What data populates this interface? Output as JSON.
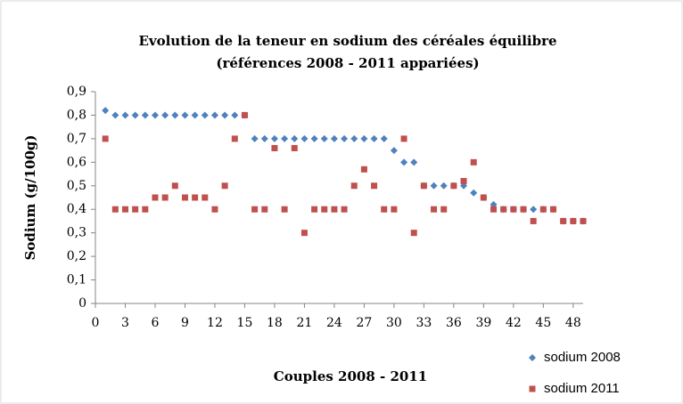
{
  "chart_data": {
    "type": "scatter",
    "title": "Evolution de la teneur en sodium des céréales équilibre",
    "subtitle": "(références 2008 - 2011 appariées)",
    "x_label": "Couples 2008 - 2011",
    "y_label": "Sodium (g/100g)",
    "x": [
      1,
      2,
      3,
      4,
      5,
      6,
      7,
      8,
      9,
      10,
      11,
      12,
      13,
      14,
      15,
      16,
      17,
      18,
      19,
      20,
      21,
      22,
      23,
      24,
      25,
      26,
      27,
      28,
      29,
      30,
      31,
      32,
      33,
      34,
      35,
      36,
      37,
      38,
      39,
      40,
      41,
      42,
      43,
      44,
      45,
      46,
      47,
      48,
      49
    ],
    "series": [
      {
        "name": "sodium 2008",
        "color": "#4f81bd",
        "marker": "diamond",
        "values": [
          0.82,
          0.8,
          0.8,
          0.8,
          0.8,
          0.8,
          0.8,
          0.8,
          0.8,
          0.8,
          0.8,
          0.8,
          0.8,
          0.8,
          0.8,
          0.7,
          0.7,
          0.7,
          0.7,
          0.7,
          0.7,
          0.7,
          0.7,
          0.7,
          0.7,
          0.7,
          0.7,
          0.7,
          0.7,
          0.65,
          0.6,
          0.6,
          0.5,
          0.5,
          0.5,
          0.5,
          0.5,
          0.47,
          0.45,
          0.42,
          0.4,
          0.4,
          0.4,
          0.4,
          0.4,
          0.4,
          0.35,
          0.35,
          0.35
        ]
      },
      {
        "name": "sodium 2011",
        "color": "#c0504d",
        "marker": "square",
        "values": [
          0.7,
          0.4,
          0.4,
          0.4,
          0.4,
          0.45,
          0.45,
          0.5,
          0.45,
          0.45,
          0.45,
          0.4,
          0.5,
          0.7,
          0.8,
          0.4,
          0.4,
          0.66,
          0.4,
          0.66,
          0.3,
          0.4,
          0.4,
          0.4,
          0.4,
          0.5,
          0.57,
          0.5,
          0.4,
          0.4,
          0.7,
          0.3,
          0.5,
          0.4,
          0.4,
          0.5,
          0.52,
          0.6,
          0.45,
          0.4,
          0.4,
          0.4,
          0.4,
          0.35,
          0.4,
          0.4,
          0.35,
          0.35,
          0.35
        ]
      }
    ],
    "xlim": [
      0,
      49
    ],
    "xticks": [
      0,
      3,
      6,
      9,
      12,
      15,
      18,
      21,
      24,
      27,
      30,
      33,
      36,
      39,
      42,
      45,
      48
    ],
    "ylim": [
      0,
      0.9
    ],
    "yticks": [
      0,
      {
        "value": 0.1,
        "label": "0,1"
      },
      {
        "value": 0.2,
        "label": "0,2"
      },
      {
        "value": 0.3,
        "label": "0,3"
      },
      {
        "value": 0.4,
        "label": "0,4"
      },
      {
        "value": 0.5,
        "label": "0,5"
      },
      {
        "value": 0.6,
        "label": "0,6"
      },
      {
        "value": 0.7,
        "label": "0,7"
      },
      {
        "value": 0.8,
        "label": "0,8"
      },
      {
        "value": 0.9,
        "label": "0,9"
      }
    ],
    "grid": false,
    "legend": "bottom-right"
  }
}
